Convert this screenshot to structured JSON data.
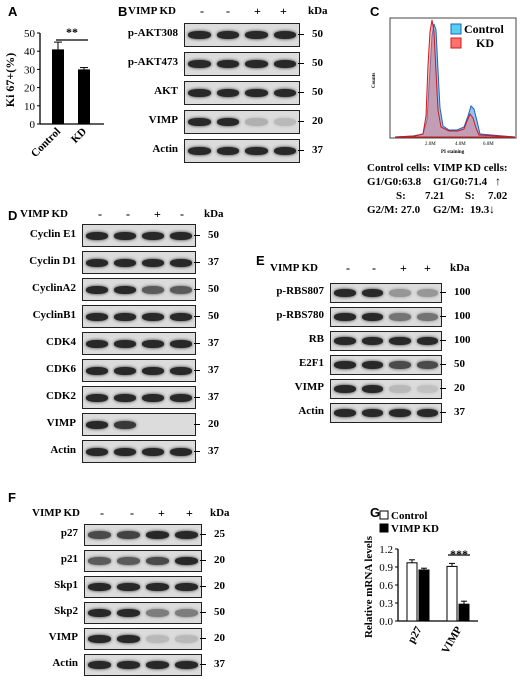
{
  "panels": {
    "A": "A",
    "B": "B",
    "C": "C",
    "D": "D",
    "E": "E",
    "F": "F",
    "G": "G"
  },
  "panelA": {
    "ylabel": "Ki 67+(%)",
    "sig": "**",
    "yticks": [
      "0",
      "10",
      "20",
      "30",
      "40",
      "50"
    ],
    "categories": [
      "Control",
      "KD"
    ]
  },
  "panelB": {
    "header": "VIMP KD",
    "lanes": [
      "-",
      "-",
      "+",
      "+"
    ],
    "kda": "kDa",
    "rows": [
      {
        "label": "p-AKT308",
        "kda": "50"
      },
      {
        "label": "p-AKT473",
        "kda": "50"
      },
      {
        "label": "AKT",
        "kda": "50"
      },
      {
        "label": "VIMP",
        "kda": "20"
      },
      {
        "label": "Actin",
        "kda": "37"
      }
    ]
  },
  "panelC": {
    "legend": [
      "Control",
      "KD"
    ],
    "ylabel": "Counts",
    "xlabel": "PI staining",
    "xticks": [
      "2.0M",
      "4.0M",
      "6.0M"
    ],
    "control_title": "Control cells:",
    "control_lines": [
      "G1/G0:63.8",
      "S:",
      "7.21",
      "G2/M: 27.0"
    ],
    "kd_title": "VIMP KD cells:",
    "kd_lines": [
      "G1/G0:71.4",
      "S:",
      "7.02",
      "G2/M:",
      "19.3"
    ],
    "arrows": [
      "↑",
      "↓"
    ]
  },
  "panelD": {
    "header": "VIMP KD",
    "lanes": [
      "-",
      "-",
      "+",
      "-"
    ],
    "kda": "kDa",
    "rows": [
      {
        "label": "Cyclin E1",
        "kda": "50"
      },
      {
        "label": "Cyclin D1",
        "kda": "37"
      },
      {
        "label": "CyclinA2",
        "kda": "50"
      },
      {
        "label": "CyclinB1",
        "kda": "50"
      },
      {
        "label": "CDK4",
        "kda": "37"
      },
      {
        "label": "CDK6",
        "kda": "37"
      },
      {
        "label": "CDK2",
        "kda": "37"
      },
      {
        "label": "VIMP",
        "kda": "20"
      },
      {
        "label": "Actin",
        "kda": "37"
      }
    ]
  },
  "panelE": {
    "header": "VIMP KD",
    "lanes": [
      "-",
      "-",
      "+",
      "+"
    ],
    "kda": "kDa",
    "rows": [
      {
        "label": "p-RBS807",
        "kda": "100"
      },
      {
        "label": "p-RBS780",
        "kda": "100"
      },
      {
        "label": "RB",
        "kda": "100"
      },
      {
        "label": "E2F1",
        "kda": "50"
      },
      {
        "label": "VIMP",
        "kda": "20"
      },
      {
        "label": "Actin",
        "kda": "37"
      }
    ]
  },
  "panelF": {
    "header": "VIMP KD",
    "lanes": [
      "-",
      "-",
      "+",
      "+"
    ],
    "kda": "kDa",
    "rows": [
      {
        "label": "p27",
        "kda": "25"
      },
      {
        "label": "p21",
        "kda": "20"
      },
      {
        "label": "Skp1",
        "kda": "20"
      },
      {
        "label": "Skp2",
        "kda": "50"
      },
      {
        "label": "VIMP",
        "kda": "20"
      },
      {
        "label": "Actin",
        "kda": "37"
      }
    ]
  },
  "panelG": {
    "legend": [
      "Control",
      "VIMP KD"
    ],
    "ylabel": "Relative mRNA levels",
    "sig": "***",
    "yticks": [
      "0.0",
      "0.3",
      "0.6",
      "0.9",
      "1.2"
    ],
    "categories": [
      "p27",
      "VIMP"
    ]
  },
  "chart_data": [
    {
      "type": "bar",
      "panel": "A",
      "title": "",
      "xlabel": "",
      "ylabel": "Ki 67+(%)",
      "categories": [
        "Control",
        "KD"
      ],
      "values": [
        41,
        30
      ],
      "errors": [
        4,
        1
      ],
      "ylim": [
        0,
        50
      ],
      "annotation": "**"
    },
    {
      "type": "bar",
      "panel": "G",
      "title": "",
      "xlabel": "",
      "ylabel": "Relative mRNA levels",
      "categories": [
        "p27",
        "VIMP"
      ],
      "series": [
        {
          "name": "Control",
          "values": [
            0.97,
            0.91
          ],
          "errors": [
            0.05,
            0.05
          ]
        },
        {
          "name": "VIMP KD",
          "values": [
            0.85,
            0.28
          ],
          "errors": [
            0.03,
            0.05
          ]
        }
      ],
      "ylim": [
        0,
        1.2
      ],
      "annotation": "***",
      "colors": {
        "Control": "#ffffff",
        "VIMP KD": "#000000"
      }
    }
  ]
}
